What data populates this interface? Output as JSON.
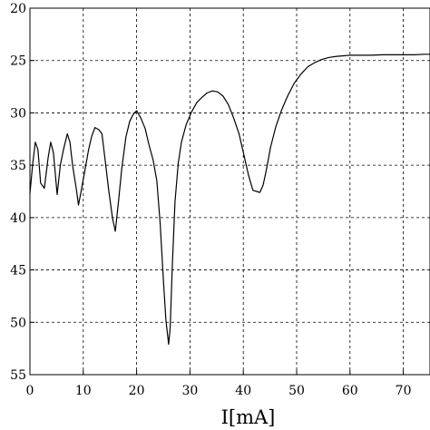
{
  "chart_data": {
    "type": "line",
    "xlabel": "I[mA]",
    "ylabel": "",
    "title": "",
    "xlim": [
      0,
      75
    ],
    "ylim": [
      20,
      55
    ],
    "y_inverted": true,
    "grid": true,
    "x_ticks": [
      0,
      10,
      20,
      30,
      40,
      50,
      60,
      70
    ],
    "y_ticks": [
      20,
      25,
      30,
      35,
      40,
      45,
      50,
      55
    ],
    "x_tick_labels": [
      "0",
      "10",
      "20",
      "30",
      "40",
      "50",
      "60",
      "70"
    ],
    "y_tick_labels": [
      "20",
      "25",
      "30",
      "35",
      "40",
      "45",
      "50",
      "55"
    ],
    "series": [
      {
        "x": [
          0,
          0.5,
          1,
          1.5,
          2,
          2.7,
          3.4,
          3.9,
          4.4,
          5.1,
          5.7,
          6.3,
          7,
          7.5,
          8,
          8.7,
          9.1,
          9.6,
          10.3,
          11,
          11.6,
          12.2,
          12.9,
          13.5,
          14.1,
          14.8,
          15.5,
          16,
          16.6,
          17.2,
          18,
          18.7,
          19.4,
          20,
          20.8,
          21.6,
          22.3,
          23.1,
          23.8,
          24.4,
          25,
          25.5,
          26,
          26.3,
          26.7,
          27.2,
          27.8,
          28.4,
          29.3,
          30.3,
          31.3,
          32.3,
          33.2,
          34.2,
          35.2,
          36.2,
          37.2,
          38.2,
          39.2,
          40.1,
          41,
          41.8,
          42.5,
          43.1,
          43.7,
          44.3,
          45.1,
          46.1,
          47.2,
          48.3,
          49.5,
          50.8,
          52.1,
          53.4,
          54.7,
          56.1,
          57.5,
          58.8,
          60,
          62,
          64,
          66,
          68,
          70,
          72,
          74,
          75
        ],
        "y": [
          37.7,
          35,
          32.8,
          33.5,
          36.7,
          37.2,
          34.3,
          32.8,
          33.8,
          37.8,
          35,
          33.5,
          32,
          32.8,
          35,
          37.3,
          38.8,
          37.5,
          35.5,
          33.5,
          32.2,
          31.4,
          31.6,
          32,
          34.5,
          37.5,
          40.1,
          41.3,
          38.5,
          35.4,
          32.3,
          30.8,
          30.1,
          29.8,
          30.5,
          31.5,
          33,
          34.5,
          36.5,
          40.5,
          45.8,
          49.8,
          52.1,
          50.5,
          44.5,
          38.5,
          34.8,
          32.8,
          31.1,
          29.9,
          29,
          28.5,
          28.1,
          27.9,
          28,
          28.4,
          29.2,
          30.5,
          32,
          34,
          36,
          37.4,
          37.5,
          37.6,
          36.9,
          35.5,
          33.3,
          31.3,
          29.7,
          28.4,
          27.2,
          26.3,
          25.6,
          25.2,
          24.9,
          24.7,
          24.6,
          24.55,
          24.5,
          24.5,
          24.5,
          24.45,
          24.45,
          24.45,
          24.45,
          24.4,
          24.4
        ]
      }
    ]
  }
}
